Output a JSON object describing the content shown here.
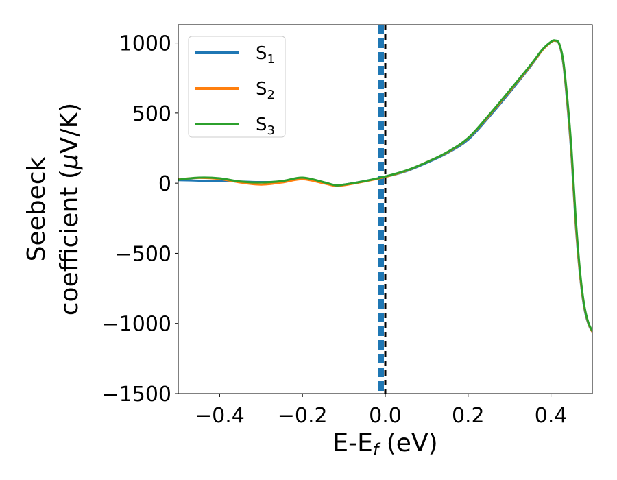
{
  "chart_data": {
    "type": "line",
    "title": "",
    "xlabel": "E-E",
    "xlabel_sub": "f",
    "xlabel_unit": " (eV)",
    "ylabel_line1": "Seebeck",
    "ylabel_line2": "coefficient  (",
    "ylabel_mu": "μ",
    "ylabel_unit": "V/K)",
    "xlim": [
      -0.5,
      0.5
    ],
    "ylim": [
      -1500,
      1130
    ],
    "xticks": [
      -0.4,
      -0.2,
      0.0,
      0.2,
      0.4
    ],
    "xtick_labels": [
      "−0.4",
      "−0.2",
      "0.0",
      "0.2",
      "0.4"
    ],
    "yticks": [
      -1500,
      -1000,
      -500,
      0,
      500,
      1000
    ],
    "ytick_labels": [
      "−1500",
      "−1000",
      "−500",
      "0",
      "500",
      "1000"
    ],
    "grid": false,
    "legend_position": "upper-left",
    "vline": {
      "x": 0.0
    },
    "series": [
      {
        "name": "S",
        "name_sub": "1",
        "color": "#1f77b4",
        "x": [
          -0.5,
          -0.45,
          -0.4,
          -0.35,
          -0.3,
          -0.25,
          -0.2,
          -0.15,
          -0.12,
          -0.1,
          -0.05,
          0.0,
          0.05,
          0.1,
          0.15,
          0.2,
          0.25,
          0.3,
          0.35,
          0.38,
          0.4,
          0.41,
          0.42,
          0.43,
          0.44,
          0.45,
          0.46,
          0.47,
          0.48,
          0.49,
          0.5
        ],
        "y": [
          22,
          18,
          15,
          12,
          8,
          12,
          35,
          5,
          -15,
          -10,
          15,
          45,
          85,
          145,
          215,
          310,
          470,
          645,
          830,
          950,
          1005,
          1015,
          990,
          850,
          550,
          180,
          -300,
          -650,
          -880,
          -1000,
          -1060
        ]
      },
      {
        "name": "S",
        "name_sub": "2",
        "color": "#ff7f0e",
        "x": [
          -0.5,
          -0.45,
          -0.4,
          -0.35,
          -0.3,
          -0.25,
          -0.2,
          -0.15,
          -0.12,
          -0.1,
          -0.05,
          0.0,
          0.05,
          0.1,
          0.15,
          0.2,
          0.25,
          0.3,
          0.35,
          0.38,
          0.4,
          0.41,
          0.42,
          0.43,
          0.44,
          0.45,
          0.46,
          0.47,
          0.48,
          0.49,
          0.5
        ],
        "y": [
          28,
          38,
          30,
          5,
          -10,
          5,
          28,
          0,
          -20,
          -15,
          12,
          45,
          88,
          150,
          220,
          320,
          480,
          655,
          835,
          950,
          1005,
          1015,
          992,
          860,
          570,
          200,
          -280,
          -640,
          -870,
          -995,
          -1060
        ]
      },
      {
        "name": "S",
        "name_sub": "3",
        "color": "#2ca02c",
        "x": [
          -0.5,
          -0.45,
          -0.4,
          -0.35,
          -0.3,
          -0.25,
          -0.2,
          -0.15,
          -0.12,
          -0.1,
          -0.05,
          0.0,
          0.05,
          0.1,
          0.15,
          0.2,
          0.25,
          0.3,
          0.35,
          0.38,
          0.4,
          0.41,
          0.42,
          0.43,
          0.44,
          0.45,
          0.46,
          0.47,
          0.48,
          0.49,
          0.5
        ],
        "y": [
          25,
          40,
          35,
          12,
          5,
          15,
          40,
          8,
          -15,
          -10,
          15,
          48,
          90,
          150,
          222,
          322,
          485,
          660,
          840,
          955,
          1008,
          1018,
          995,
          870,
          590,
          230,
          -250,
          -620,
          -860,
          -990,
          -1055
        ]
      }
    ]
  }
}
